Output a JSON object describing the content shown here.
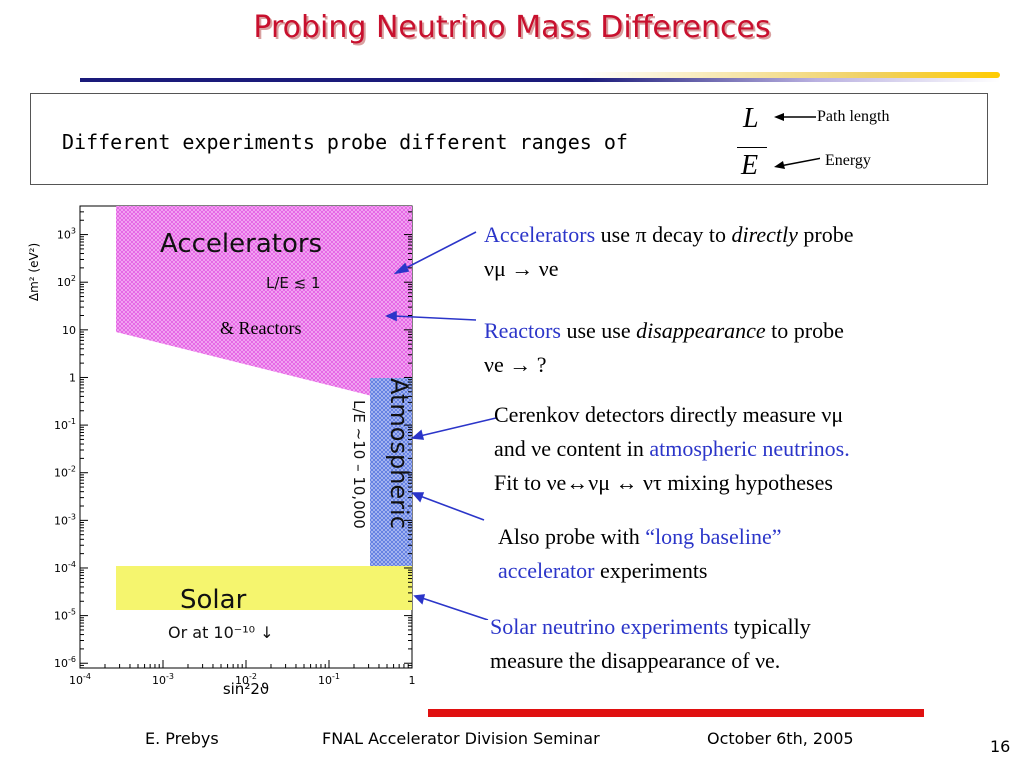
{
  "title": "Probing Neutrino Mass Differences",
  "intro": {
    "text": "Different experiments probe different ranges of",
    "frac_num": "L",
    "frac_den": "E",
    "path_length": "Path length",
    "energy": "Energy"
  },
  "plot": {
    "y_axis_label": "Δm² (eV²)",
    "x_axis_label": "sin²2ϑ",
    "y_ticks": [
      {
        "label": "10",
        "exp": "3",
        "dec": 3
      },
      {
        "label": "10",
        "exp": "2",
        "dec": 2
      },
      {
        "label": "10",
        "exp": "",
        "dec": 1
      },
      {
        "label": "1",
        "exp": "",
        "dec": 0
      },
      {
        "label": "10",
        "exp": "-1",
        "dec": -1
      },
      {
        "label": "10",
        "exp": "-2",
        "dec": -2
      },
      {
        "label": "10",
        "exp": "-3",
        "dec": -3
      },
      {
        "label": "10",
        "exp": "-4",
        "dec": -4
      },
      {
        "label": "10",
        "exp": "-5",
        "dec": -5
      },
      {
        "label": "10",
        "exp": "-6",
        "dec": -6
      }
    ],
    "x_ticks": [
      {
        "label": "10",
        "exp": "-4",
        "dec": -4
      },
      {
        "label": "10",
        "exp": "-3",
        "dec": -3
      },
      {
        "label": "10",
        "exp": "-2",
        "dec": -2
      },
      {
        "label": "10",
        "exp": "-1",
        "dec": -1
      },
      {
        "label": "1",
        "exp": "",
        "dec": 0
      }
    ],
    "regions": {
      "accelerators": "Accelerators",
      "accel_le": "L/E ≲ 1",
      "reactors": "& Reactors",
      "atmospheric": "Atmospheric",
      "atmos_le": "L/E ~10 – 10,000",
      "solar": "Solar",
      "solar_note": "Or at 10⁻¹⁰ ↓"
    },
    "colors": {
      "accelerators": "#e35ee3",
      "atmospheric": "#5070e0",
      "solar": "#f5f56e"
    }
  },
  "bullets": {
    "b1": {
      "a": "Accelerators",
      "b": " use π decay to ",
      "c": "directly",
      "d": " probe",
      "line2": "νμ → νe"
    },
    "b2": {
      "a": "Reactors",
      "b": " use use ",
      "c": "disappearance",
      "d": " to probe",
      "line2": "νe → ?"
    },
    "b3": {
      "line1": "Cerenkov detectors directly measure νμ",
      "line2a": "and νe  content in ",
      "line2b": "atmospheric neutrinos.",
      "line3": "Fit to νe↔νμ ↔ ντ mixing hypotheses"
    },
    "b4": {
      "a": "Also probe with ",
      "b": "“long baseline”",
      "line2a": "accelerator",
      "line2b": " experiments"
    },
    "b5": {
      "a": "Solar neutrino experiments",
      "b": " typically",
      "line2": "measure the disappearance of νe."
    }
  },
  "footer": {
    "author": "E. Prebys",
    "event": "FNAL Accelerator Division Seminar",
    "date": "October 6th, 2005",
    "page": "16"
  }
}
